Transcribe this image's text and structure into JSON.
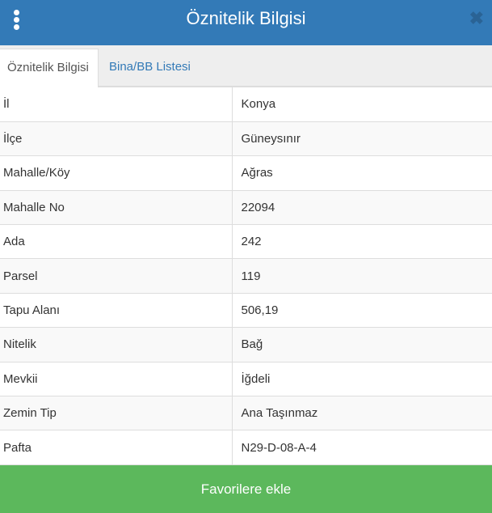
{
  "header": {
    "title": "Öznitelik Bilgisi",
    "menu_icon": "vertical-dots-icon",
    "close_icon": "close-icon",
    "color": "#337ab7"
  },
  "tabs": [
    {
      "label": "Öznitelik Bilgisi",
      "active": true
    },
    {
      "label": "Bina/BB Listesi",
      "active": false
    }
  ],
  "rows": [
    {
      "key": "İl",
      "value": "Konya"
    },
    {
      "key": "İlçe",
      "value": "Güneysınır"
    },
    {
      "key": "Mahalle/Köy",
      "value": "Ağras"
    },
    {
      "key": "Mahalle No",
      "value": "22094"
    },
    {
      "key": "Ada",
      "value": "242"
    },
    {
      "key": "Parsel",
      "value": "119"
    },
    {
      "key": "Tapu Alanı",
      "value": "506,19"
    },
    {
      "key": "Nitelik",
      "value": "Bağ"
    },
    {
      "key": "Mevkii",
      "value": "İğdeli"
    },
    {
      "key": "Zemin Tip",
      "value": "Ana Taşınmaz"
    },
    {
      "key": "Pafta",
      "value": "N29-D-08-A-4"
    }
  ],
  "footer": {
    "button_label": "Favorilere ekle",
    "color": "#5cb85c"
  }
}
